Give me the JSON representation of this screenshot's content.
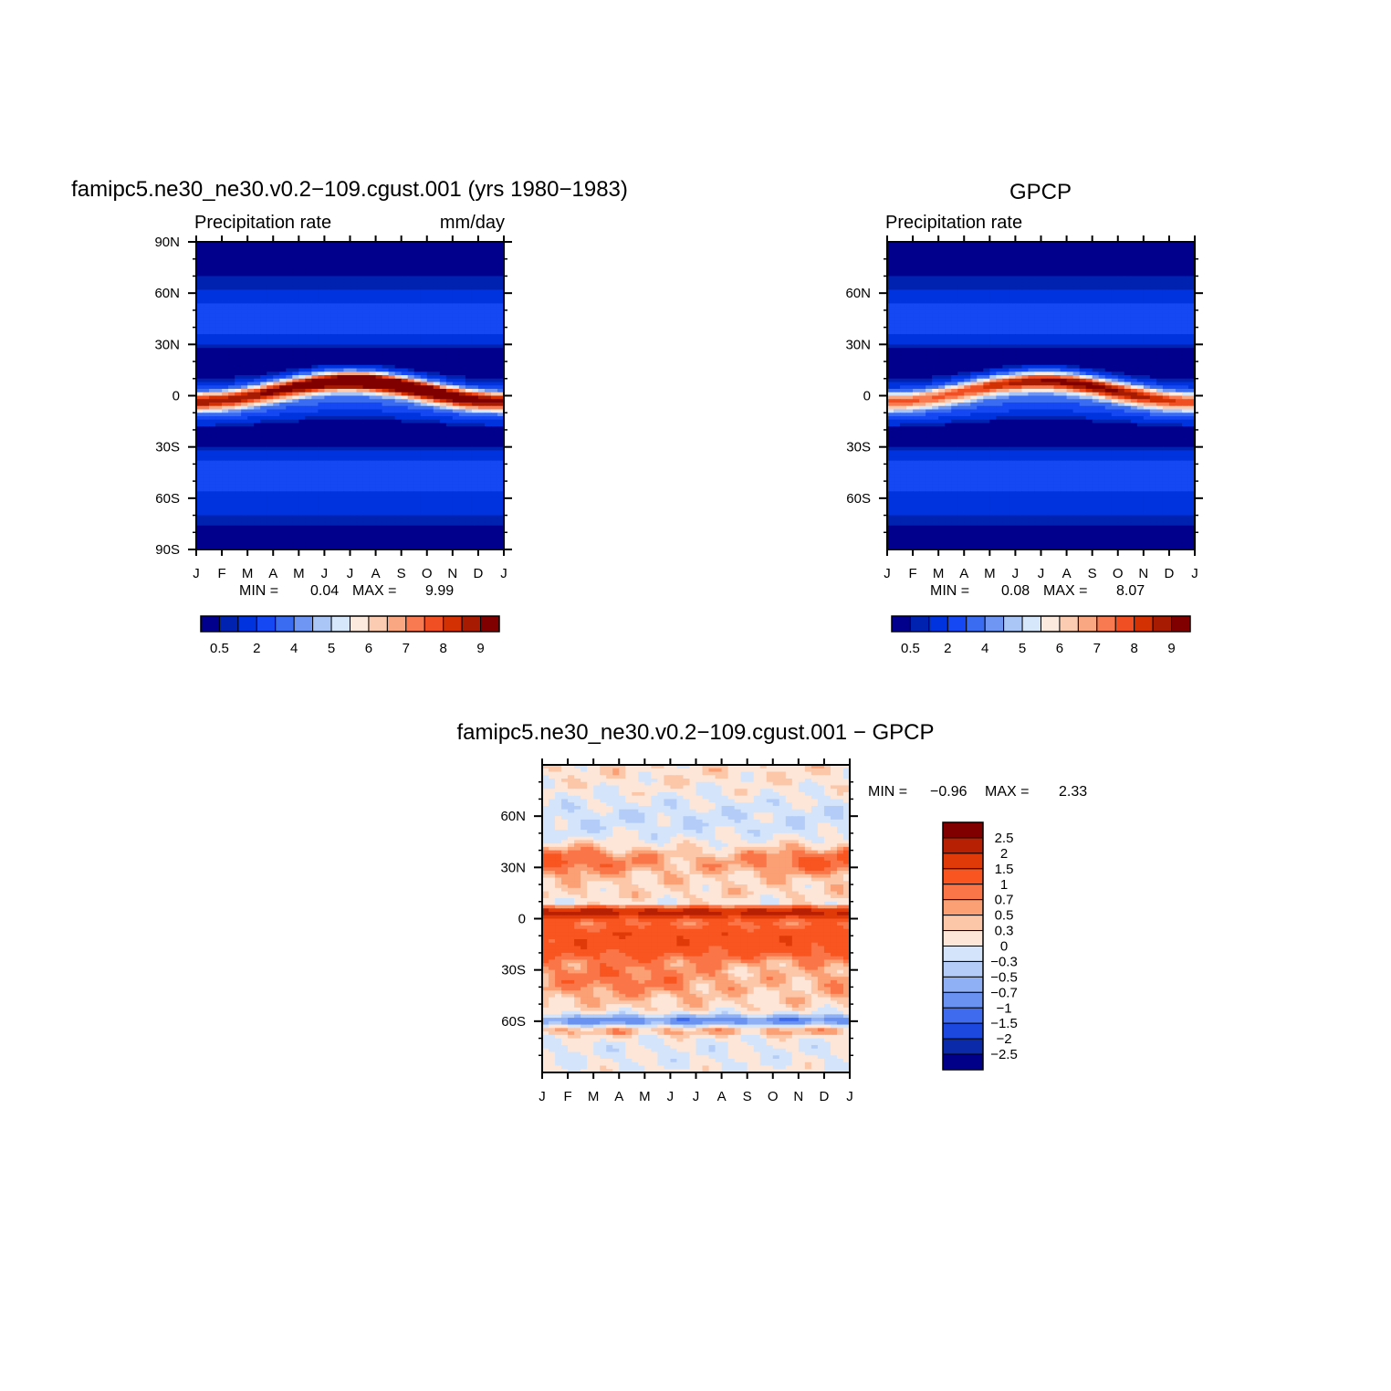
{
  "colors": {
    "precip_palette": [
      "#00008c",
      "#0022b0",
      "#0033dd",
      "#1547f2",
      "#3a6cf2",
      "#7096f4",
      "#a9c6f6",
      "#d6e6fb",
      "#fdeade",
      "#fbcbb2",
      "#f9a682",
      "#f87a50",
      "#ef4f22",
      "#d33003",
      "#a81b03",
      "#800000"
    ],
    "diff_palette": [
      "#800000",
      "#b82004",
      "#e03a08",
      "#f85520",
      "#fa7648",
      "#fb9f75",
      "#fcc6a8",
      "#fde6d8",
      "#d4e5fb",
      "#b4cdf8",
      "#8fb0f5",
      "#6a92f1",
      "#3f6bee",
      "#1c48e0",
      "#0a2aaa",
      "#000088"
    ]
  },
  "chart_data": [
    {
      "id": "model-panel",
      "type": "heatmap",
      "title": "famipc5.ne30_ne30.v0.2−109.cgust.001 (yrs 1980−1983)",
      "left_subtitle": "Precipitation rate",
      "right_subtitle": "mm/day",
      "xlabel": "",
      "ylabel": "",
      "x_tick_labels": [
        "J",
        "F",
        "M",
        "A",
        "M",
        "J",
        "J",
        "A",
        "S",
        "O",
        "N",
        "D",
        "J"
      ],
      "y_tick_labels": [
        "90N",
        "60N",
        "30N",
        "0",
        "30S",
        "60S",
        "90S"
      ],
      "y_tick_values": [
        90,
        60,
        30,
        0,
        -30,
        -60,
        -90
      ],
      "ylim": [
        -90,
        90
      ],
      "min_label": "MIN =",
      "min_value": "0.04",
      "max_label": "MAX =",
      "max_value": "9.99",
      "colorbar_labels": [
        "0.5",
        "2",
        "4",
        "5",
        "6",
        "7",
        "8",
        "9"
      ],
      "itcz_peak": 9.99,
      "colorbar_orientation": "horizontal"
    },
    {
      "id": "obs-panel",
      "type": "heatmap",
      "title": "GPCP",
      "left_subtitle": "Precipitation rate",
      "right_subtitle": "",
      "xlabel": "",
      "ylabel": "",
      "x_tick_labels": [
        "J",
        "F",
        "M",
        "A",
        "M",
        "J",
        "J",
        "A",
        "S",
        "O",
        "N",
        "D",
        "J"
      ],
      "y_tick_labels": [
        "60N",
        "30N",
        "0",
        "30S",
        "60S"
      ],
      "y_tick_values": [
        60,
        30,
        0,
        -30,
        -60
      ],
      "ylim": [
        -90,
        90
      ],
      "min_label": "MIN =",
      "min_value": "0.08",
      "max_label": "MAX =",
      "max_value": "8.07",
      "colorbar_labels": [
        "0.5",
        "2",
        "4",
        "5",
        "6",
        "7",
        "8",
        "9"
      ],
      "itcz_peak": 8.07,
      "colorbar_orientation": "horizontal"
    },
    {
      "id": "diff-panel",
      "type": "heatmap",
      "title": "famipc5.ne30_ne30.v0.2−109.cgust.001 − GPCP",
      "left_subtitle": "",
      "right_subtitle": "",
      "xlabel": "",
      "ylabel": "",
      "x_tick_labels": [
        "J",
        "F",
        "M",
        "A",
        "M",
        "J",
        "J",
        "A",
        "S",
        "O",
        "N",
        "D",
        "J"
      ],
      "y_tick_labels": [
        "60N",
        "30N",
        "0",
        "30S",
        "60S"
      ],
      "y_tick_values": [
        60,
        30,
        0,
        -30,
        -60
      ],
      "ylim": [
        -90,
        90
      ],
      "min_label": "MIN =",
      "min_value": "−0.96",
      "max_label": "MAX =",
      "max_value": "2.33",
      "colorbar_labels": [
        "2.5",
        "2",
        "1.5",
        "1",
        "0.7",
        "0.5",
        "0.3",
        "0",
        "−0.3",
        "−0.5",
        "−0.7",
        "−1",
        "−1.5",
        "−2",
        "−2.5"
      ],
      "colorbar_orientation": "vertical"
    }
  ]
}
